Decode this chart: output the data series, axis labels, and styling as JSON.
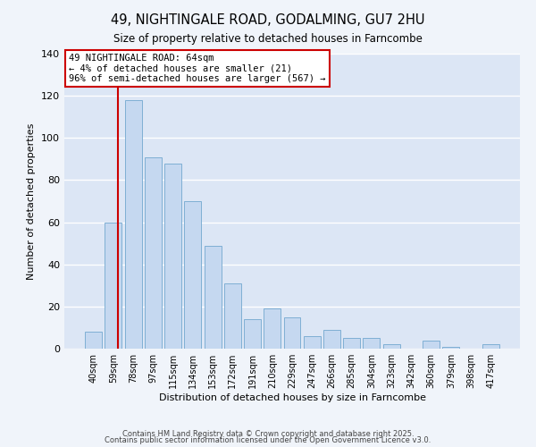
{
  "title": "49, NIGHTINGALE ROAD, GODALMING, GU7 2HU",
  "subtitle": "Size of property relative to detached houses in Farncombe",
  "xlabel": "Distribution of detached houses by size in Farncombe",
  "ylabel": "Number of detached properties",
  "bar_labels": [
    "40sqm",
    "59sqm",
    "78sqm",
    "97sqm",
    "115sqm",
    "134sqm",
    "153sqm",
    "172sqm",
    "191sqm",
    "210sqm",
    "229sqm",
    "247sqm",
    "266sqm",
    "285sqm",
    "304sqm",
    "323sqm",
    "342sqm",
    "360sqm",
    "379sqm",
    "398sqm",
    "417sqm"
  ],
  "bar_values": [
    8,
    60,
    118,
    91,
    88,
    70,
    49,
    31,
    14,
    19,
    15,
    6,
    9,
    5,
    5,
    2,
    0,
    4,
    1,
    0,
    2
  ],
  "bar_color": "#c5d8f0",
  "bar_edge_color": "#7fafd4",
  "ylim": [
    0,
    140
  ],
  "yticks": [
    0,
    20,
    40,
    60,
    80,
    100,
    120,
    140
  ],
  "grid_color": "#ffffff",
  "bg_color": "#dce6f5",
  "fig_bg_color": "#f0f4fa",
  "annotation_line1": "49 NIGHTINGALE ROAD: 64sqm",
  "annotation_line2": "← 4% of detached houses are smaller (21)",
  "annotation_line3": "96% of semi-detached houses are larger (567) →",
  "vline_color": "#cc0000",
  "vline_x": 1.21,
  "footer1": "Contains HM Land Registry data © Crown copyright and database right 2025.",
  "footer2": "Contains public sector information licensed under the Open Government Licence v3.0."
}
